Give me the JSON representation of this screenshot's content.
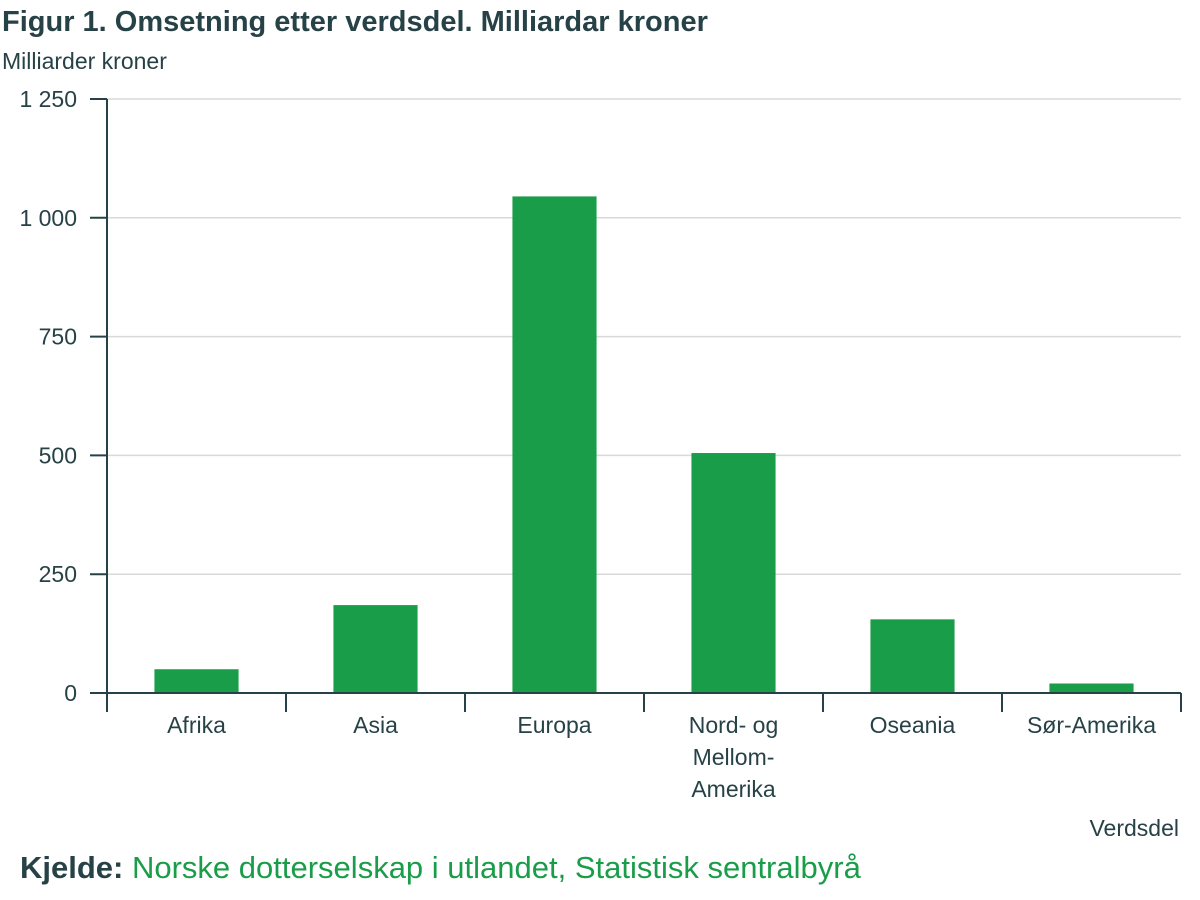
{
  "chart_data": {
    "type": "bar",
    "title": "Figur 1. Omsetning etter verdsdel. Milliardar kroner",
    "ylabel": "Milliarder kroner",
    "xlabel": "Verdsdel",
    "categories": [
      "Afrika",
      "Asia",
      "Europa",
      "Nord- og Mellom-Amerika",
      "Oseania",
      "Sør-Amerika"
    ],
    "category_lines": [
      [
        "Afrika"
      ],
      [
        "Asia"
      ],
      [
        "Europa"
      ],
      [
        "Nord- og",
        "Mellom-",
        "Amerika"
      ],
      [
        "Oseania"
      ],
      [
        "Sør-Amerika"
      ]
    ],
    "values": [
      50,
      185,
      1045,
      505,
      155,
      20
    ],
    "ylim": [
      0,
      1250
    ],
    "yticks": [
      0,
      250,
      500,
      750,
      1000,
      1250
    ],
    "ytick_labels": [
      "0",
      "250",
      "500",
      "750",
      "1 000",
      "1 250"
    ],
    "grid": true,
    "colors": {
      "bar": "#1a9d49",
      "axis": "#274247",
      "grid": "#d9d9d9",
      "text": "#274247"
    }
  },
  "source": {
    "label": "Kjelde:",
    "text": "Norske dotterselskap i utlandet, Statistisk sentralbyrå"
  }
}
